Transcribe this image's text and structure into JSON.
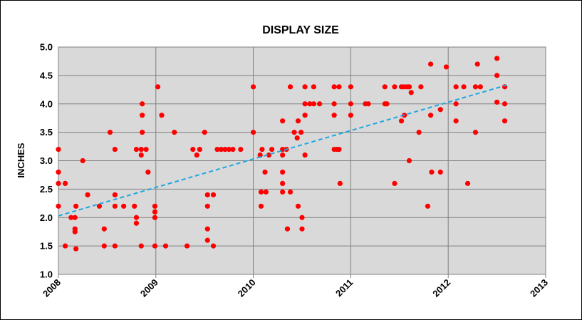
{
  "chart_data": {
    "type": "scatter",
    "title": "DISPLAY SIZE",
    "ylabel": "INCHES",
    "xlabel": "",
    "xlim": [
      2008,
      2013
    ],
    "ylim": [
      1.0,
      5.0
    ],
    "x_ticks": [
      "2008",
      "2009",
      "2010",
      "2011",
      "2012",
      "2013"
    ],
    "y_ticks": [
      "1.0",
      "1.5",
      "2.0",
      "2.5",
      "3.0",
      "3.5",
      "4.0",
      "4.5",
      "5.0"
    ],
    "grid": true,
    "plot_background": "#d9d9d9",
    "point_color": "#ff0000",
    "trendline_color": "#1ea7e1",
    "trendline": {
      "x": [
        2008.0,
        2012.6
      ],
      "y": [
        2.03,
        4.33
      ]
    },
    "points": [
      [
        2008.0,
        3.2
      ],
      [
        2008.0,
        2.8
      ],
      [
        2008.0,
        2.6
      ],
      [
        2008.0,
        2.2
      ],
      [
        2008.07,
        1.5
      ],
      [
        2008.07,
        2.6
      ],
      [
        2008.13,
        2.0
      ],
      [
        2008.17,
        2.0
      ],
      [
        2008.17,
        1.8
      ],
      [
        2008.17,
        1.75
      ],
      [
        2008.18,
        2.2
      ],
      [
        2008.18,
        1.45
      ],
      [
        2008.25,
        3.0
      ],
      [
        2008.3,
        2.4
      ],
      [
        2008.42,
        2.2
      ],
      [
        2008.47,
        1.5
      ],
      [
        2008.47,
        1.8
      ],
      [
        2008.53,
        3.5
      ],
      [
        2008.58,
        3.2
      ],
      [
        2008.58,
        2.4
      ],
      [
        2008.58,
        2.2
      ],
      [
        2008.58,
        1.5
      ],
      [
        2008.67,
        2.2
      ],
      [
        2008.78,
        2.2
      ],
      [
        2008.8,
        3.2
      ],
      [
        2008.8,
        2.0
      ],
      [
        2008.8,
        1.9
      ],
      [
        2008.85,
        3.2
      ],
      [
        2008.85,
        3.1
      ],
      [
        2008.85,
        1.5
      ],
      [
        2008.86,
        4.0
      ],
      [
        2008.86,
        3.8
      ],
      [
        2008.86,
        3.5
      ],
      [
        2008.9,
        3.2
      ],
      [
        2008.92,
        2.8
      ],
      [
        2008.99,
        2.2
      ],
      [
        2008.99,
        2.1
      ],
      [
        2008.99,
        2.0
      ],
      [
        2008.99,
        1.5
      ],
      [
        2009.02,
        4.3
      ],
      [
        2009.06,
        3.8
      ],
      [
        2009.1,
        1.5
      ],
      [
        2009.19,
        3.5
      ],
      [
        2009.32,
        1.5
      ],
      [
        2009.38,
        3.2
      ],
      [
        2009.42,
        3.1
      ],
      [
        2009.45,
        3.2
      ],
      [
        2009.5,
        3.5
      ],
      [
        2009.53,
        2.4
      ],
      [
        2009.53,
        2.2
      ],
      [
        2009.53,
        1.8
      ],
      [
        2009.53,
        1.6
      ],
      [
        2009.59,
        2.4
      ],
      [
        2009.59,
        1.5
      ],
      [
        2009.63,
        3.2
      ],
      [
        2009.67,
        3.2
      ],
      [
        2009.71,
        3.2
      ],
      [
        2009.75,
        3.2
      ],
      [
        2009.79,
        3.2
      ],
      [
        2009.87,
        3.2
      ],
      [
        2010.0,
        4.3
      ],
      [
        2010.0,
        3.5
      ],
      [
        2010.07,
        3.1
      ],
      [
        2010.08,
        2.45
      ],
      [
        2010.08,
        2.2
      ],
      [
        2010.09,
        3.2
      ],
      [
        2010.12,
        2.8
      ],
      [
        2010.13,
        2.45
      ],
      [
        2010.16,
        3.1
      ],
      [
        2010.19,
        3.2
      ],
      [
        2010.3,
        3.7
      ],
      [
        2010.3,
        3.2
      ],
      [
        2010.3,
        3.1
      ],
      [
        2010.3,
        2.8
      ],
      [
        2010.3,
        2.6
      ],
      [
        2010.3,
        2.45
      ],
      [
        2010.34,
        3.2
      ],
      [
        2010.35,
        1.8
      ],
      [
        2010.38,
        4.3
      ],
      [
        2010.38,
        2.45
      ],
      [
        2010.42,
        3.5
      ],
      [
        2010.45,
        3.4
      ],
      [
        2010.46,
        3.7
      ],
      [
        2010.46,
        2.2
      ],
      [
        2010.49,
        3.5
      ],
      [
        2010.5,
        2.0
      ],
      [
        2010.5,
        1.8
      ],
      [
        2010.53,
        4.3
      ],
      [
        2010.53,
        4.0
      ],
      [
        2010.53,
        3.8
      ],
      [
        2010.53,
        3.1
      ],
      [
        2010.58,
        4.0
      ],
      [
        2010.62,
        4.3
      ],
      [
        2010.62,
        4.0
      ],
      [
        2010.68,
        4.0
      ],
      [
        2010.83,
        4.3
      ],
      [
        2010.83,
        4.0
      ],
      [
        2010.83,
        3.8
      ],
      [
        2010.83,
        3.2
      ],
      [
        2010.86,
        3.2
      ],
      [
        2010.88,
        4.3
      ],
      [
        2010.88,
        3.2
      ],
      [
        2010.89,
        2.6
      ],
      [
        2011.0,
        4.3
      ],
      [
        2011.0,
        4.0
      ],
      [
        2011.0,
        3.8
      ],
      [
        2011.15,
        4.0
      ],
      [
        2011.18,
        4.0
      ],
      [
        2011.35,
        4.3
      ],
      [
        2011.35,
        4.0
      ],
      [
        2011.37,
        4.0
      ],
      [
        2011.45,
        4.3
      ],
      [
        2011.45,
        2.6
      ],
      [
        2011.52,
        4.3
      ],
      [
        2011.52,
        3.7
      ],
      [
        2011.55,
        4.3
      ],
      [
        2011.55,
        3.8
      ],
      [
        2011.58,
        4.3
      ],
      [
        2011.6,
        4.3
      ],
      [
        2011.6,
        3.0
      ],
      [
        2011.62,
        4.2
      ],
      [
        2011.7,
        3.5
      ],
      [
        2011.72,
        4.3
      ],
      [
        2011.79,
        2.2
      ],
      [
        2011.82,
        4.7
      ],
      [
        2011.82,
        3.8
      ],
      [
        2011.83,
        2.8
      ],
      [
        2011.92,
        3.9
      ],
      [
        2011.92,
        2.8
      ],
      [
        2011.98,
        4.65
      ],
      [
        2012.08,
        4.3
      ],
      [
        2012.08,
        4.0
      ],
      [
        2012.08,
        3.7
      ],
      [
        2012.16,
        4.3
      ],
      [
        2012.2,
        2.6
      ],
      [
        2012.28,
        3.5
      ],
      [
        2012.28,
        4.3
      ],
      [
        2012.3,
        4.7
      ],
      [
        2012.33,
        4.3
      ],
      [
        2012.5,
        4.8
      ],
      [
        2012.5,
        4.5
      ],
      [
        2012.5,
        4.03
      ],
      [
        2012.58,
        4.3
      ],
      [
        2012.58,
        4.0
      ],
      [
        2012.58,
        3.7
      ]
    ]
  }
}
